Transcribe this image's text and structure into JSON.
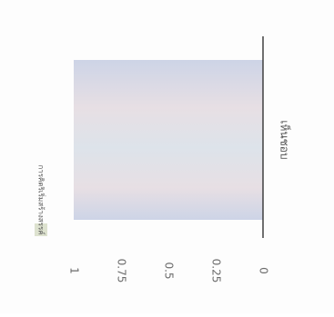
{
  "chart_data": {
    "type": "bar",
    "categories": [
      "เห็นชอบ"
    ],
    "series": [
      {
        "name": "การคิดริเริ่มสร้างสรรค์",
        "values": [
          1
        ]
      }
    ],
    "ylim": [
      0,
      1
    ],
    "yticks": [
      "0",
      "0.25",
      "0.5",
      "0.75",
      "1"
    ],
    "legend": "top-left",
    "grid": false,
    "orientation": "rotated 90° clockwise",
    "colors": {
      "bar_top": "#cdd4e6",
      "bar_mid": "#e7dfe4",
      "bar_bottom": "#dde3ea",
      "legend_swatch": "#dde2cf",
      "axis": "#333333",
      "tick_text": "#6b6b6b",
      "label_text": "#555555"
    }
  }
}
